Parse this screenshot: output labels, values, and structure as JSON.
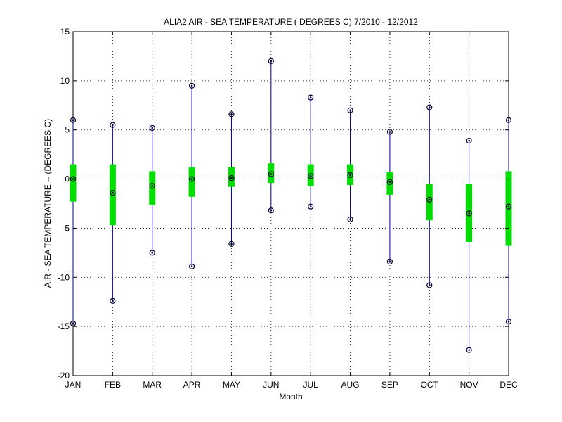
{
  "chart_data": {
    "type": "box",
    "title": "ALIA2  AIR - SEA TEMPERATURE ( DEGREES C) 7/2010 - 12/2012",
    "xlabel": "Month",
    "ylabel": "AIR - SEA TEMPERATURE -- (DEGREES C)",
    "categories": [
      "JAN",
      "FEB",
      "MAR",
      "APR",
      "MAY",
      "JUN",
      "JUL",
      "AUG",
      "SEP",
      "OCT",
      "NOV",
      "DEC"
    ],
    "ylim": [
      -20,
      15
    ],
    "yticks": [
      15,
      10,
      5,
      0,
      -5,
      -10,
      -15,
      -20
    ],
    "grid": true,
    "series": [
      {
        "min": [
          -14.7,
          -12.4,
          -7.5,
          -8.9,
          -6.6,
          -3.2,
          -2.8,
          -4.1,
          -8.4,
          -10.8,
          -17.4,
          -14.5
        ]
      },
      {
        "q1": [
          -2.3,
          -4.7,
          -2.6,
          -1.8,
          -0.8,
          -0.4,
          -0.7,
          -0.6,
          -1.6,
          -4.2,
          -6.4,
          -6.8
        ]
      },
      {
        "median": [
          0.0,
          -1.4,
          -0.7,
          0.0,
          0.1,
          0.5,
          0.3,
          0.4,
          -0.3,
          -2.1,
          -3.5,
          -2.8
        ]
      },
      {
        "q3": [
          1.5,
          1.5,
          0.8,
          1.2,
          1.2,
          1.6,
          1.5,
          1.5,
          0.7,
          -0.5,
          -0.5,
          0.8
        ]
      },
      {
        "max": [
          6.0,
          5.5,
          5.2,
          9.5,
          6.6,
          12.0,
          8.3,
          7.0,
          4.8,
          7.3,
          3.9,
          6.0
        ]
      }
    ],
    "colors": {
      "whisker": "#0000aa",
      "box": "#00dd00",
      "marker": "#000033"
    }
  }
}
